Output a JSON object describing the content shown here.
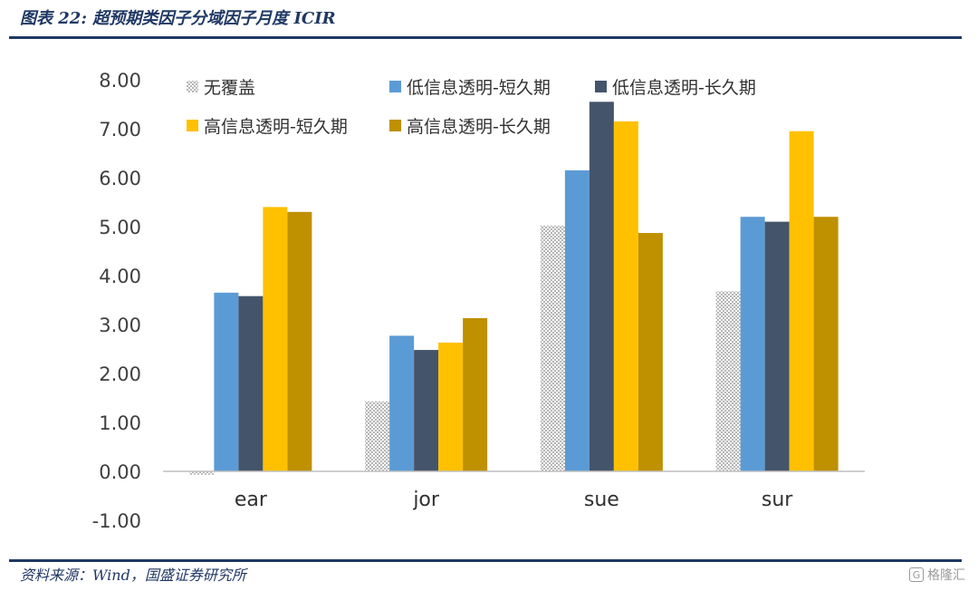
{
  "figure": {
    "title": "图表 22: 超预期类因子分域因子月度 ICIR",
    "source": "资料来源：Wind，国盛证券研究所",
    "watermark": "格隆汇",
    "watermark_badge": "G"
  },
  "chart_data": {
    "type": "bar",
    "title": "",
    "xlabel": "",
    "ylabel": "",
    "categories": [
      "ear",
      "jor",
      "sue",
      "sur"
    ],
    "ylim": [
      -1.0,
      8.0
    ],
    "yticks": [
      -1.0,
      0.0,
      1.0,
      2.0,
      3.0,
      4.0,
      5.0,
      6.0,
      7.0,
      8.0
    ],
    "ytick_labels": [
      "-1.00",
      "0.00",
      "1.00",
      "2.00",
      "3.00",
      "4.00",
      "5.00",
      "6.00",
      "7.00",
      "8.00"
    ],
    "grid": false,
    "legend_position": "top",
    "series": [
      {
        "name": "无覆盖",
        "color": "#c8c8c8",
        "pattern": "dots",
        "values": [
          -0.07,
          1.43,
          5.02,
          3.68
        ]
      },
      {
        "name": "低信息透明-短久期",
        "color": "#5b9bd5",
        "values": [
          3.65,
          2.77,
          6.15,
          5.2
        ]
      },
      {
        "name": "低信息透明-长久期",
        "color": "#44546a",
        "values": [
          3.58,
          2.48,
          7.55,
          5.1
        ]
      },
      {
        "name": "高信息透明-短久期",
        "color": "#ffc000",
        "values": [
          5.4,
          2.63,
          7.15,
          6.95
        ]
      },
      {
        "name": "高信息透明-长久期",
        "color": "#bf9000",
        "values": [
          5.3,
          3.13,
          4.87,
          5.2
        ]
      }
    ]
  }
}
